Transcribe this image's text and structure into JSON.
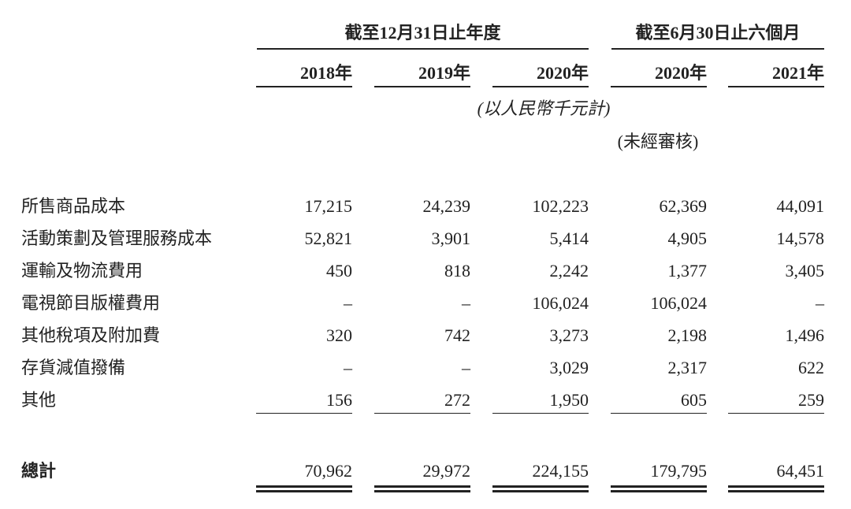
{
  "header": {
    "groups": [
      "截至12月31日止年度",
      "截至6月30日止六個月"
    ],
    "years": [
      "2018年",
      "2019年",
      "2020年",
      "2020年",
      "2021年"
    ],
    "unit_note": "(以人民幣千元計)",
    "audit_note": "(未經審核)"
  },
  "table": {
    "rows": [
      {
        "label": "所售商品成本",
        "values": [
          "17,215",
          "24,239",
          "102,223",
          "62,369",
          "44,091"
        ]
      },
      {
        "label": "活動策劃及管理服務成本",
        "values": [
          "52,821",
          "3,901",
          "5,414",
          "4,905",
          "14,578"
        ]
      },
      {
        "label": "運輸及物流費用",
        "values": [
          "450",
          "818",
          "2,242",
          "1,377",
          "3,405"
        ]
      },
      {
        "label": "電視節目版權費用",
        "values": [
          "–",
          "–",
          "106,024",
          "106,024",
          "–"
        ]
      },
      {
        "label": "其他稅項及附加費",
        "values": [
          "320",
          "742",
          "3,273",
          "2,198",
          "1,496"
        ]
      },
      {
        "label": "存貨減值撥備",
        "values": [
          "–",
          "–",
          "3,029",
          "2,317",
          "622"
        ]
      },
      {
        "label": "其他",
        "values": [
          "156",
          "272",
          "1,950",
          "605",
          "259"
        ]
      }
    ],
    "total": {
      "label": "總計",
      "values": [
        "70,962",
        "29,972",
        "224,155",
        "179,795",
        "64,451"
      ]
    }
  }
}
